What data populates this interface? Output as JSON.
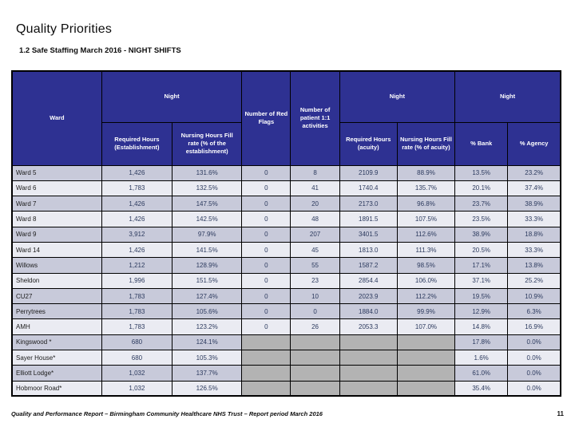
{
  "page": {
    "title": "Quality Priorities",
    "subtitle": "1.2 Safe Staffing March 2016 - NIGHT SHIFTS",
    "footer": "Quality and Performance Report – Birmingham Community Healthcare NHS Trust – Report period March 2016",
    "page_number": "11"
  },
  "colors": {
    "header_bg": "#2e3192",
    "header_text": "#ffffff",
    "row_dark": "#c8cada",
    "row_light": "#eaebf2",
    "blank_cell": "#b3b3b3",
    "value_text": "#2c3a5e"
  },
  "table": {
    "headers": {
      "ward": "Ward",
      "night": "Night",
      "req_est": "Required Hours (Establishment)",
      "fill_est": "Nursing Hours Fill rate (% of the establishment)",
      "red_flags": "Number of Red Flags",
      "one_to_one": "Number of patient 1:1 activities",
      "req_acuity": "Required Hours (acuity)",
      "fill_acuity": "Nursing Hours Fill rate (% of acuity)",
      "bank": "% Bank",
      "agency": "% Agency"
    },
    "rows": [
      {
        "ward": "Ward 5",
        "req_est": "1,426",
        "fill_est": "131.6%",
        "red_flags": "0",
        "one_to_one": "8",
        "req_acuity": "2109.9",
        "fill_acuity": "88.9%",
        "bank": "13.5%",
        "agency": "23.2%",
        "shade": "dark"
      },
      {
        "ward": "Ward 6",
        "req_est": "1,783",
        "fill_est": "132.5%",
        "red_flags": "0",
        "one_to_one": "41",
        "req_acuity": "1740.4",
        "fill_acuity": "135.7%",
        "bank": "20.1%",
        "agency": "37.4%",
        "shade": "light"
      },
      {
        "ward": "Ward 7",
        "req_est": "1,426",
        "fill_est": "147.5%",
        "red_flags": "0",
        "one_to_one": "20",
        "req_acuity": "2173.0",
        "fill_acuity": "96.8%",
        "bank": "23.7%",
        "agency": "38.9%",
        "shade": "dark"
      },
      {
        "ward": "Ward 8",
        "req_est": "1,426",
        "fill_est": "142.5%",
        "red_flags": "0",
        "one_to_one": "48",
        "req_acuity": "1891.5",
        "fill_acuity": "107.5%",
        "bank": "23.5%",
        "agency": "33.3%",
        "shade": "light"
      },
      {
        "ward": "Ward 9",
        "req_est": "3,912",
        "fill_est": "97.9%",
        "red_flags": "0",
        "one_to_one": "207",
        "req_acuity": "3401.5",
        "fill_acuity": "112.6%",
        "bank": "38.9%",
        "agency": "18.8%",
        "shade": "dark"
      },
      {
        "ward": "Ward 14",
        "req_est": "1,426",
        "fill_est": "141.5%",
        "red_flags": "0",
        "one_to_one": "45",
        "req_acuity": "1813.0",
        "fill_acuity": "111.3%",
        "bank": "20.5%",
        "agency": "33.3%",
        "shade": "light"
      },
      {
        "ward": "Willows",
        "req_est": "1,212",
        "fill_est": "128.9%",
        "red_flags": "0",
        "one_to_one": "55",
        "req_acuity": "1587.2",
        "fill_acuity": "98.5%",
        "bank": "17.1%",
        "agency": "13.8%",
        "shade": "dark"
      },
      {
        "ward": "Sheldon",
        "req_est": "1,996",
        "fill_est": "151.5%",
        "red_flags": "0",
        "one_to_one": "23",
        "req_acuity": "2854.4",
        "fill_acuity": "106.0%",
        "bank": "37.1%",
        "agency": "25.2%",
        "shade": "light"
      },
      {
        "ward": "CU27",
        "req_est": "1,783",
        "fill_est": "127.4%",
        "red_flags": "0",
        "one_to_one": "10",
        "req_acuity": "2023.9",
        "fill_acuity": "112.2%",
        "bank": "19.5%",
        "agency": "10.9%",
        "shade": "dark"
      },
      {
        "ward": "Perrytrees",
        "req_est": "1,783",
        "fill_est": "105.6%",
        "red_flags": "0",
        "one_to_one": "0",
        "req_acuity": "1884.0",
        "fill_acuity": "99.9%",
        "bank": "12.9%",
        "agency": "6.3%",
        "shade": "dark"
      },
      {
        "ward": "AMH",
        "req_est": "1,783",
        "fill_est": "123.2%",
        "red_flags": "0",
        "one_to_one": "26",
        "req_acuity": "2053.3",
        "fill_acuity": "107.0%",
        "bank": "14.8%",
        "agency": "16.9%",
        "shade": "light"
      },
      {
        "ward": "Kingswood *",
        "req_est": "680",
        "fill_est": "124.1%",
        "red_flags": null,
        "one_to_one": null,
        "req_acuity": null,
        "fill_acuity": null,
        "bank": "17.8%",
        "agency": "0.0%",
        "shade": "dark"
      },
      {
        "ward": "Sayer House*",
        "req_est": "680",
        "fill_est": "105.3%",
        "red_flags": null,
        "one_to_one": null,
        "req_acuity": null,
        "fill_acuity": null,
        "bank": "1.6%",
        "agency": "0.0%",
        "shade": "light"
      },
      {
        "ward": "Elliott Lodge*",
        "req_est": "1,032",
        "fill_est": "137.7%",
        "red_flags": null,
        "one_to_one": null,
        "req_acuity": null,
        "fill_acuity": null,
        "bank": "61.0%",
        "agency": "0.0%",
        "shade": "dark"
      },
      {
        "ward": "Hobmoor Road*",
        "req_est": "1,032",
        "fill_est": "126.5%",
        "red_flags": null,
        "one_to_one": null,
        "req_acuity": null,
        "fill_acuity": null,
        "bank": "35.4%",
        "agency": "0.0%",
        "shade": "light"
      }
    ]
  }
}
